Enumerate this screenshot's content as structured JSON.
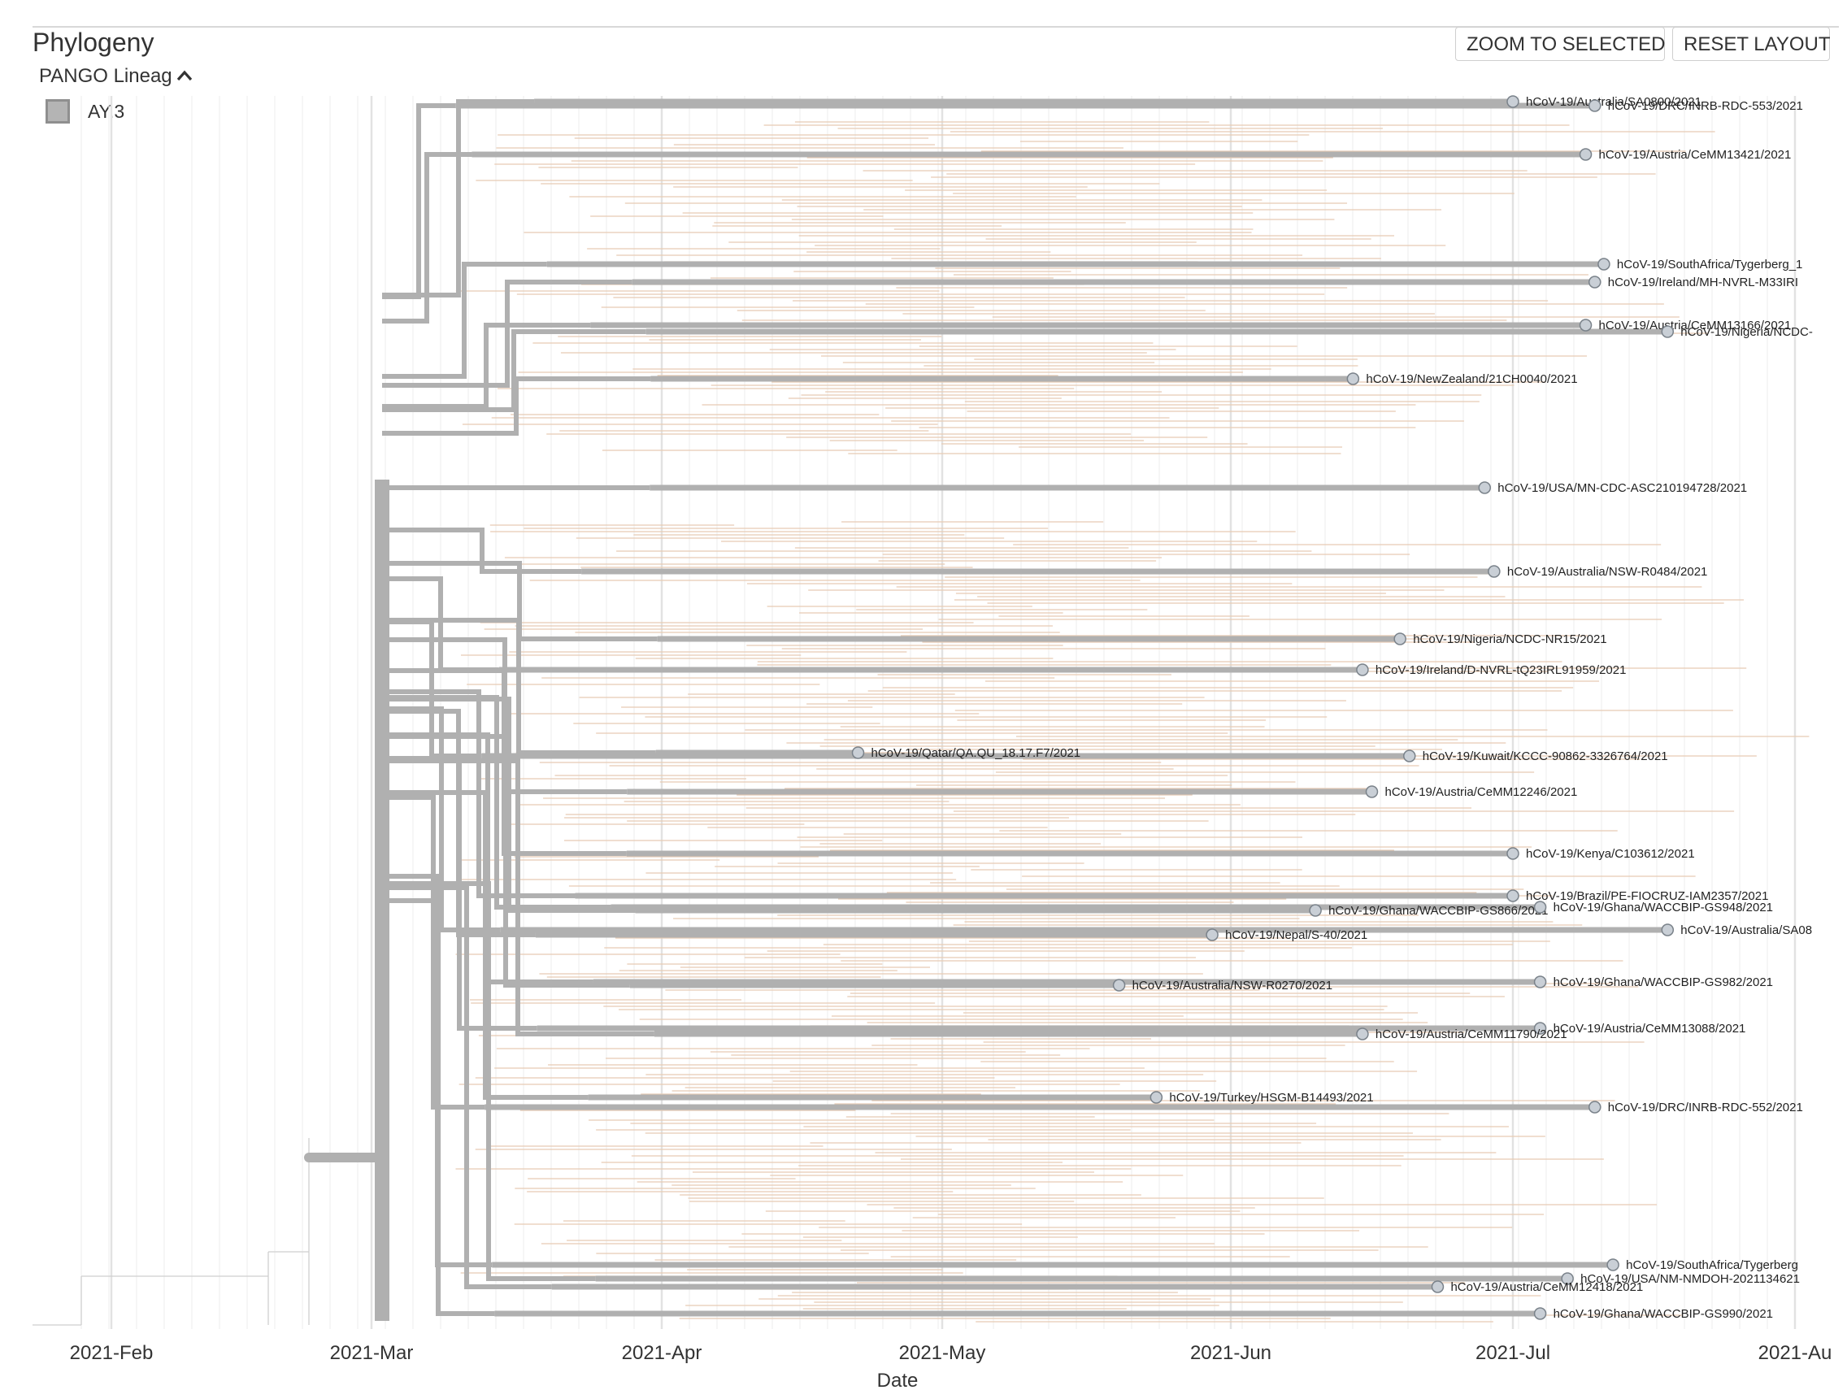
{
  "panel": {
    "title": "Phylogeny",
    "zoom_button": "ZOOM TO SELECTED",
    "reset_button": "RESET LAYOUT"
  },
  "legend": {
    "title": "PANGO Lineag",
    "collapse_icon": "chevron-up-icon",
    "items": [
      {
        "label": "AY.3",
        "color": "#b4b4b4"
      }
    ]
  },
  "colors": {
    "highlight_branch": "#b0b0b0",
    "background_branch": "#e8cbb3",
    "tip_node": "#c9cfd6",
    "gridline": "#e2e2e2"
  },
  "chart_data": {
    "type": "phylogenetic-tree",
    "xlabel": "Date",
    "ticks": [
      "2021-Feb",
      "2021-Mar",
      "2021-Apr",
      "2021-May",
      "2021-Jun",
      "2021-Jul",
      "2021-Au"
    ],
    "x_range": [
      "2021-01-15",
      "2021-08-01"
    ],
    "labeled_tips": [
      {
        "label": "hCoV-19/Australia/SA0800/2021",
        "date": "2021-07-01"
      },
      {
        "label": "hCoV-19/DRC/INRB-RDC-553/2021",
        "date": "2021-07-10"
      },
      {
        "label": "hCoV-19/Austria/CeMM13421/2021",
        "date": "2021-07-09"
      },
      {
        "label": "hCoV-19/SouthAfrica/Tygerberg_1",
        "date": "2021-07-11"
      },
      {
        "label": "hCoV-19/Ireland/MH-NVRL-M33IRI",
        "date": "2021-07-10"
      },
      {
        "label": "hCoV-19/Austria/CeMM13166/2021",
        "date": "2021-07-09"
      },
      {
        "label": "hCoV-19/Nigeria/NCDC-",
        "date": "2021-07-18"
      },
      {
        "label": "hCoV-19/NewZealand/21CH0040/2021",
        "date": "2021-06-14"
      },
      {
        "label": "hCoV-19/USA/MN-CDC-ASC210194728/2021",
        "date": "2021-06-28"
      },
      {
        "label": "hCoV-19/Australia/NSW-R0484/2021",
        "date": "2021-06-29"
      },
      {
        "label": "hCoV-19/Nigeria/NCDC-NR15/2021",
        "date": "2021-06-19"
      },
      {
        "label": "hCoV-19/Ireland/D-NVRL-tQ23IRL91959/2021",
        "date": "2021-06-15"
      },
      {
        "label": "hCoV-19/Qatar/QA.QU_18.17.F7/2021",
        "date": "2021-04-22"
      },
      {
        "label": "hCoV-19/Kuwait/KCCC-90862-3326764/2021",
        "date": "2021-06-20"
      },
      {
        "label": "hCoV-19/Austria/CeMM12246/2021",
        "date": "2021-06-16"
      },
      {
        "label": "hCoV-19/Kenya/C103612/2021",
        "date": "2021-07-01"
      },
      {
        "label": "hCoV-19/Brazil/PE-FIOCRUZ-IAM2357/2021",
        "date": "2021-07-01"
      },
      {
        "label": "hCoV-19/Ghana/WACCBIP-GS866/2021",
        "date": "2021-06-10"
      },
      {
        "label": "hCoV-19/Ghana/WACCBIP-GS948/2021",
        "date": "2021-07-04"
      },
      {
        "label": "hCoV-19/Australia/SA08",
        "date": "2021-07-18"
      },
      {
        "label": "hCoV-19/Nepal/S-40/2021",
        "date": "2021-05-30"
      },
      {
        "label": "hCoV-19/Australia/NSW-R0270/2021",
        "date": "2021-05-20"
      },
      {
        "label": "hCoV-19/Ghana/WACCBIP-GS982/2021",
        "date": "2021-07-04"
      },
      {
        "label": "hCoV-19/Austria/CeMM13088/2021",
        "date": "2021-07-04"
      },
      {
        "label": "hCoV-19/Austria/CeMM11790/2021",
        "date": "2021-06-15"
      },
      {
        "label": "hCoV-19/Turkey/HSGM-B14493/2021",
        "date": "2021-05-24"
      },
      {
        "label": "hCoV-19/DRC/INRB-RDC-552/2021",
        "date": "2021-07-10"
      },
      {
        "label": "hCoV-19/SouthAfrica/Tygerberg",
        "date": "2021-07-12"
      },
      {
        "label": "hCoV-19/USA/NM-NMDOH-2021134621",
        "date": "2021-07-07"
      },
      {
        "label": "hCoV-19/Austria/CeMM12418/2021",
        "date": "2021-06-23"
      },
      {
        "label": "hCoV-19/Ghana/WACCBIP-GS990/2021",
        "date": "2021-07-04"
      }
    ]
  }
}
